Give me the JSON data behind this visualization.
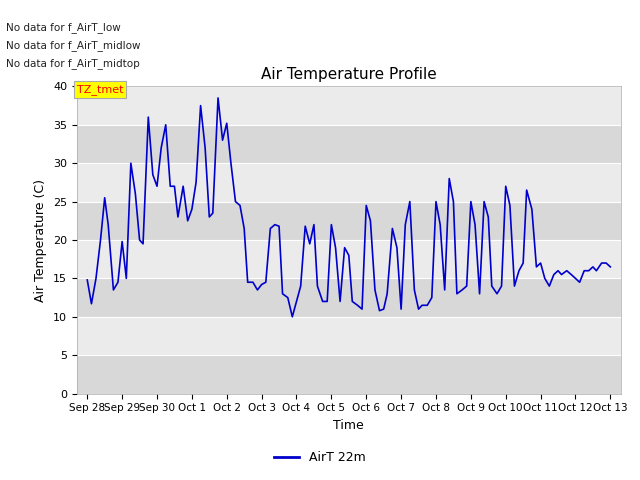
{
  "title": "Air Temperature Profile",
  "xlabel": "Time",
  "ylabel": "Air Temperature (C)",
  "ylim": [
    0,
    40
  ],
  "yticks": [
    0,
    5,
    10,
    15,
    20,
    25,
    30,
    35,
    40
  ],
  "legend_bottom": "AirT 22m",
  "legend_top_texts": [
    "No data for f_AirT_low",
    "No data for f_AirT_midlow",
    "No data for f_AirT_midtop"
  ],
  "tz_tmet_label": "TZ_tmet",
  "line_color": "#0000cc",
  "fig_bg_color": "#ffffff",
  "plot_bg_color": "#e8e8e8",
  "band_light": "#ebebeb",
  "band_dark": "#d8d8d8",
  "x_tick_labels": [
    "Sep 28",
    "Sep 29",
    "Sep 30",
    "Oct 1",
    "Oct 2",
    "Oct 3",
    "Oct 4",
    "Oct 5",
    "Oct 6",
    "Oct 7",
    "Oct 8",
    "Oct 9",
    "Oct 10",
    "Oct 11",
    "Oct 12",
    "Oct 13"
  ],
  "x_tick_positions": [
    0,
    1,
    2,
    3,
    4,
    5,
    6,
    7,
    8,
    9,
    10,
    11,
    12,
    13,
    14,
    15
  ],
  "time_data": [
    0.0,
    0.12,
    0.25,
    0.38,
    0.5,
    0.6,
    0.75,
    0.88,
    1.0,
    1.12,
    1.25,
    1.38,
    1.5,
    1.6,
    1.75,
    1.88,
    2.0,
    2.12,
    2.25,
    2.38,
    2.5,
    2.6,
    2.75,
    2.88,
    3.0,
    3.12,
    3.25,
    3.38,
    3.5,
    3.6,
    3.75,
    3.88,
    4.0,
    4.12,
    4.25,
    4.38,
    4.5,
    4.6,
    4.75,
    4.88,
    5.0,
    5.12,
    5.25,
    5.38,
    5.5,
    5.6,
    5.75,
    5.88,
    6.0,
    6.12,
    6.25,
    6.38,
    6.5,
    6.6,
    6.75,
    6.88,
    7.0,
    7.12,
    7.25,
    7.38,
    7.5,
    7.6,
    7.75,
    7.88,
    8.0,
    8.12,
    8.25,
    8.38,
    8.5,
    8.6,
    8.75,
    8.88,
    9.0,
    9.12,
    9.25,
    9.38,
    9.5,
    9.6,
    9.75,
    9.88,
    10.0,
    10.12,
    10.25,
    10.38,
    10.5,
    10.6,
    10.75,
    10.88,
    11.0,
    11.12,
    11.25,
    11.38,
    11.5,
    11.6,
    11.75,
    11.88,
    12.0,
    12.12,
    12.25,
    12.38,
    12.5,
    12.6,
    12.75,
    12.88,
    13.0,
    13.12,
    13.25,
    13.38,
    13.5,
    13.6,
    13.75,
    13.88,
    14.0,
    14.12,
    14.25,
    14.38,
    14.5,
    14.6,
    14.75,
    14.88,
    15.0
  ],
  "temp_data": [
    14.8,
    11.7,
    15.0,
    20.0,
    25.5,
    22.0,
    13.5,
    14.5,
    19.8,
    15.0,
    30.0,
    26.0,
    20.0,
    19.5,
    36.0,
    28.5,
    27.0,
    32.0,
    35.0,
    27.0,
    27.0,
    23.0,
    27.0,
    22.5,
    24.0,
    27.5,
    37.5,
    32.0,
    23.0,
    23.5,
    38.5,
    33.0,
    35.2,
    30.0,
    25.0,
    24.5,
    21.5,
    14.5,
    14.5,
    13.5,
    14.2,
    14.5,
    21.5,
    22.0,
    21.8,
    13.0,
    12.5,
    10.0,
    12.0,
    14.0,
    21.8,
    19.5,
    22.0,
    14.0,
    12.0,
    12.0,
    22.0,
    19.0,
    12.0,
    19.0,
    18.0,
    12.0,
    11.5,
    11.0,
    24.5,
    22.5,
    13.5,
    10.8,
    11.0,
    13.0,
    21.5,
    19.0,
    11.0,
    22.0,
    25.0,
    13.5,
    11.0,
    11.5,
    11.5,
    12.5,
    25.0,
    22.0,
    13.5,
    28.0,
    25.0,
    13.0,
    13.5,
    14.0,
    25.0,
    22.0,
    13.0,
    25.0,
    23.0,
    14.0,
    13.0,
    14.0,
    27.0,
    24.5,
    14.0,
    16.0,
    17.0,
    26.5,
    24.0,
    16.5,
    17.0,
    15.0,
    14.0,
    15.5,
    16.0,
    15.5,
    16.0,
    15.5,
    15.0,
    14.5,
    16.0,
    16.0,
    16.5,
    16.0,
    17.0,
    17.0,
    16.5
  ]
}
